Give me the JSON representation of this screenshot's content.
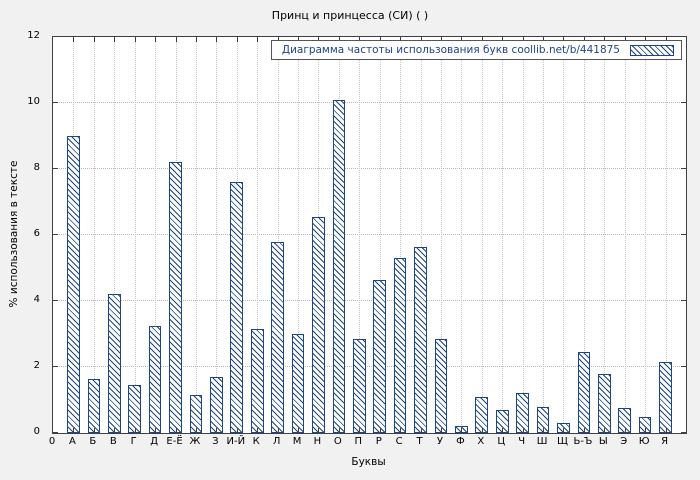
{
  "figure": {
    "bg_color": "#f1f1f1",
    "plot_bg": "#ffffff"
  },
  "chart_data": {
    "type": "bar",
    "title": "Принц и принцесса (СИ) ( )",
    "legend": "Диаграмма частоты использования букв  coollib.net/b/441875",
    "xlabel": "Буквы",
    "ylabel": "% использования в тексте",
    "ylim": [
      0,
      12
    ],
    "ytick_step": 2,
    "origin_label": "0",
    "grid": true,
    "legend_position": "top-right",
    "bar_color": "#1c4587",
    "categories": [
      "А",
      "Б",
      "В",
      "Г",
      "Д",
      "Е-Ё",
      "Ж",
      "З",
      "И-Й",
      "К",
      "Л",
      "М",
      "Н",
      "О",
      "П",
      "Р",
      "С",
      "Т",
      "У",
      "Ф",
      "Х",
      "Ц",
      "Ч",
      "Ш",
      "Щ",
      "Ь-Ъ",
      "Ы",
      "Э",
      "Ю",
      "Я"
    ],
    "values": [
      9.0,
      1.65,
      4.2,
      1.45,
      3.25,
      8.2,
      1.15,
      1.7,
      7.6,
      3.15,
      5.8,
      3.0,
      6.55,
      10.1,
      2.85,
      4.65,
      5.3,
      5.65,
      2.85,
      0.2,
      1.1,
      0.7,
      1.2,
      0.8,
      0.3,
      2.45,
      1.8,
      0.75,
      0.5,
      2.15
    ]
  }
}
